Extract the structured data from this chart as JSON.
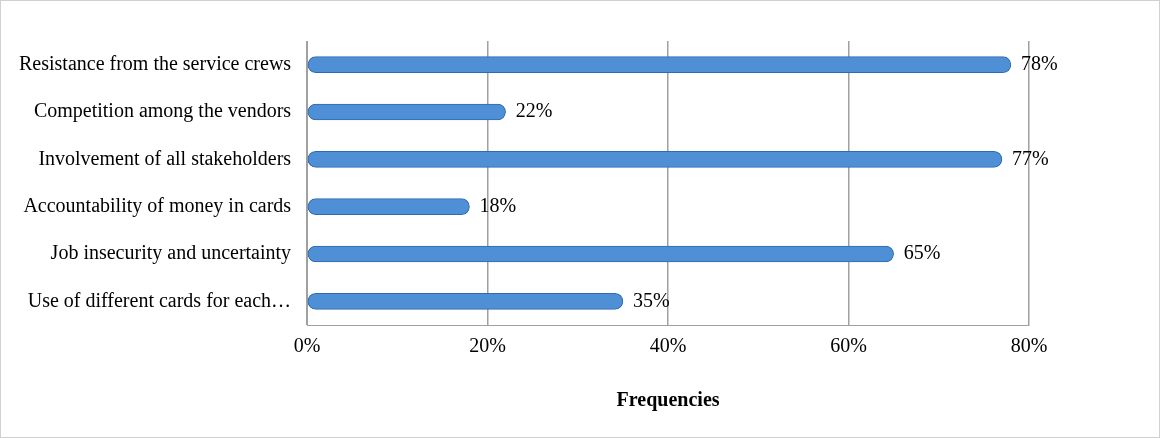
{
  "chart_data": {
    "type": "bar",
    "orientation": "horizontal",
    "xlabel": "Frequencies",
    "categories": [
      "Resistance from the service crews",
      "Competition among the vendors",
      "Involvement of all stakeholders",
      "Accountability of money in cards",
      "Job insecurity and uncertainty",
      "Use of different cards for each…"
    ],
    "values": [
      78,
      22,
      77,
      18,
      65,
      35
    ],
    "value_labels": [
      "78%",
      "22%",
      "77%",
      "18%",
      "65%",
      "35%"
    ],
    "color": "#4f8fd6",
    "xlim": [
      0,
      80
    ],
    "xticks": [
      {
        "value": 0,
        "label": "0%"
      },
      {
        "value": 20,
        "label": "20%"
      },
      {
        "value": 40,
        "label": "40%"
      },
      {
        "value": 60,
        "label": "60%"
      },
      {
        "value": 80,
        "label": "80%"
      }
    ],
    "grid": "x",
    "legend": false
  }
}
